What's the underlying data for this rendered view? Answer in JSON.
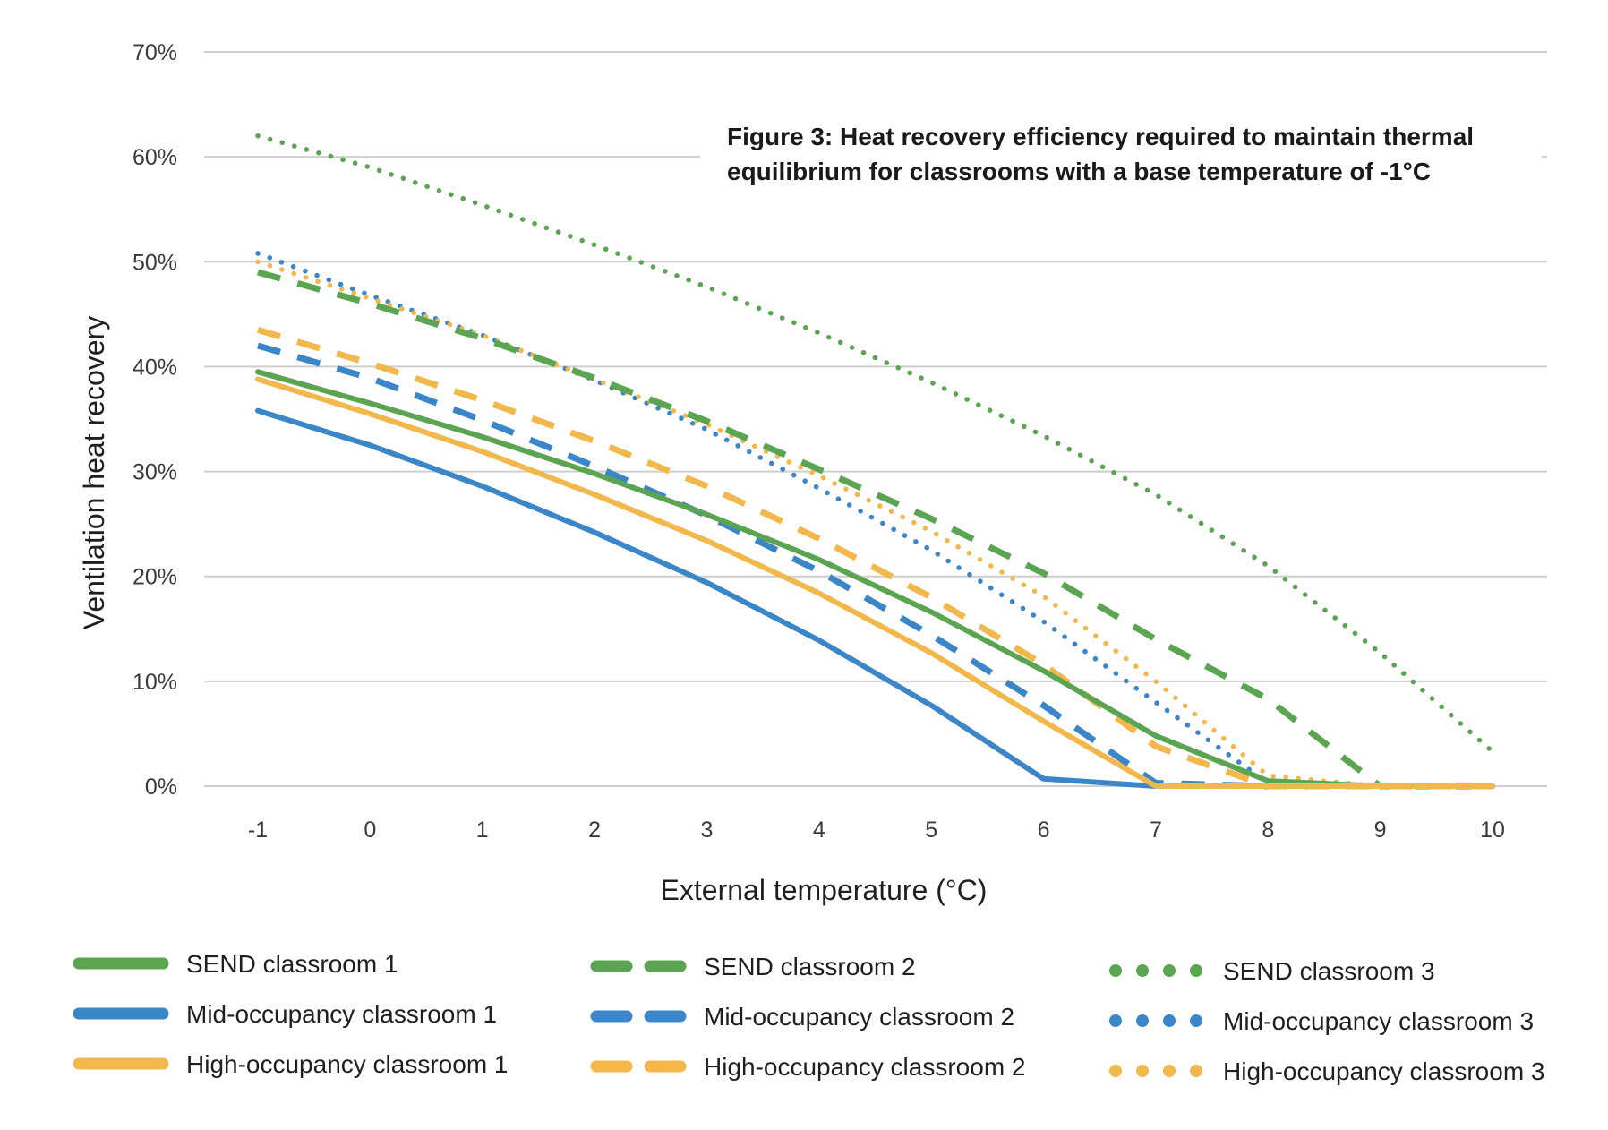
{
  "chart_data": {
    "type": "line",
    "title_line1": "Figure 3: Heat recovery efficiency required to maintain thermal",
    "title_line2": "equilibrium for classrooms with a base temperature of -1°C",
    "xlabel": "External temperature (°C)",
    "ylabel": "Ventilation heat recovery",
    "x": [
      -1,
      0,
      1,
      2,
      3,
      4,
      5,
      6,
      7,
      8,
      9,
      10
    ],
    "x_tick_labels": [
      "-1",
      "0",
      "1",
      "2",
      "3",
      "4",
      "5",
      "6",
      "7",
      "8",
      "9",
      "10"
    ],
    "ylim": [
      0,
      70
    ],
    "y_ticks": [
      0,
      10,
      20,
      30,
      40,
      50,
      60,
      70
    ],
    "y_tick_labels": [
      "0%",
      "10%",
      "20%",
      "30%",
      "40%",
      "50%",
      "60%",
      "70%"
    ],
    "grid": true,
    "legend_position": "bottom",
    "series": [
      {
        "name": "SEND classroom 1",
        "style": "solid",
        "color": "#5aa452",
        "values": [
          39.5,
          36.5,
          33.3,
          29.8,
          25.9,
          21.6,
          16.6,
          11.0,
          4.8,
          0.5,
          0,
          0
        ]
      },
      {
        "name": "Mid-occupancy classroom 1",
        "style": "solid",
        "color": "#3a86c8",
        "values": [
          35.8,
          32.5,
          28.6,
          24.2,
          19.4,
          13.9,
          7.7,
          0.7,
          0,
          0,
          0,
          0
        ]
      },
      {
        "name": "High-occupancy classroom 1",
        "style": "solid",
        "color": "#f2b84b",
        "values": [
          38.8,
          35.5,
          31.9,
          27.8,
          23.4,
          18.4,
          12.7,
          6.2,
          0,
          0,
          0,
          0
        ]
      },
      {
        "name": "SEND classroom 2",
        "style": "dashed",
        "color": "#5aa452",
        "values": [
          49.0,
          46.0,
          42.7,
          38.9,
          34.8,
          30.2,
          25.5,
          20.3,
          14.0,
          8.3,
          0,
          0
        ]
      },
      {
        "name": "Mid-occupancy classroom 2",
        "style": "dashed",
        "color": "#3a86c8",
        "values": [
          42.0,
          38.9,
          34.9,
          30.5,
          25.8,
          20.5,
          14.4,
          7.7,
          0.3,
          0,
          0,
          0
        ]
      },
      {
        "name": "High-occupancy classroom 2",
        "style": "dashed",
        "color": "#f2b84b",
        "values": [
          43.5,
          40.3,
          36.8,
          32.9,
          28.6,
          23.6,
          18.0,
          11.6,
          3.8,
          0,
          0,
          0
        ]
      },
      {
        "name": "SEND classroom 3",
        "style": "dotted",
        "color": "#5aa452",
        "values": [
          62.0,
          59.0,
          55.4,
          51.6,
          47.6,
          43.2,
          38.5,
          33.4,
          27.8,
          21.0,
          12.7,
          3.3
        ]
      },
      {
        "name": "Mid-occupancy classroom 3",
        "style": "dotted",
        "color": "#3a86c8",
        "values": [
          50.8,
          46.8,
          43.0,
          38.7,
          34.0,
          28.4,
          22.5,
          15.7,
          8.0,
          0.3,
          0,
          0
        ]
      },
      {
        "name": "High-occupancy classroom 3",
        "style": "dotted",
        "color": "#f2b84b",
        "values": [
          50.0,
          46.5,
          43.0,
          38.8,
          34.5,
          29.6,
          24.3,
          18.1,
          10.0,
          1.0,
          0,
          0
        ]
      }
    ]
  }
}
